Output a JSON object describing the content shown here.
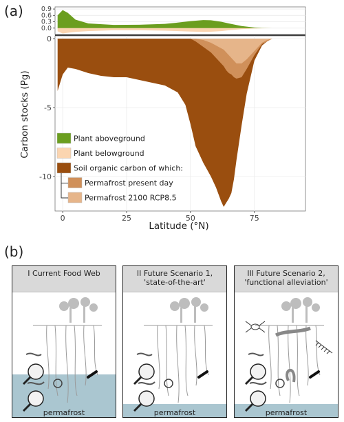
{
  "panel_a": {
    "letter": "(a)",
    "ylabel": "Carbon stocks (Pg)",
    "xlabel": "Latitude (°N)"
  },
  "panel_b": {
    "letter": "(b)",
    "scenarios": [
      {
        "title": "I Current Food Web",
        "permafrost_label": "permafrost"
      },
      {
        "title": "II Future Scenario 1,\n'state-of-the-art'",
        "permafrost_label": "permafrost"
      },
      {
        "title": "III Future Scenario 2,\n'functional alleviation'",
        "permafrost_label": "permafrost"
      }
    ]
  },
  "colors": {
    "plant_aboveground": "#6b9e1f",
    "plant_belowground": "#fbd5b0",
    "soil_organic_carbon": "#9a4e0f",
    "permafrost_present": "#d0905a",
    "permafrost_2100": "#e6b58a",
    "permafrost_band": "#aac6d0"
  },
  "chart_data": [
    {
      "type": "area",
      "panel": "top",
      "x": [
        -2,
        0,
        2,
        5,
        10,
        20,
        30,
        40,
        45,
        50,
        55,
        58,
        62,
        65,
        70,
        75,
        78,
        82
      ],
      "series": [
        {
          "name": "Plant aboveground",
          "values": [
            0.6,
            0.85,
            0.72,
            0.4,
            0.22,
            0.15,
            0.16,
            0.2,
            0.26,
            0.33,
            0.38,
            0.37,
            0.3,
            0.22,
            0.1,
            0.03,
            0.01,
            0.0
          ]
        },
        {
          "name": "Plant belowground",
          "values": [
            0.15,
            0.25,
            0.22,
            0.18,
            0.14,
            0.1,
            0.1,
            0.12,
            0.14,
            0.16,
            0.18,
            0.17,
            0.14,
            0.1,
            0.05,
            0.02,
            0.01,
            0.0
          ]
        }
      ],
      "yticks": [
        0.0,
        0.3,
        0.6,
        0.9
      ],
      "ylim": [
        -0.3,
        1.0
      ]
    },
    {
      "type": "area",
      "panel": "bottom",
      "x": [
        -2,
        0,
        2,
        5,
        10,
        15,
        20,
        25,
        30,
        35,
        40,
        45,
        48,
        50,
        52,
        55,
        58,
        60,
        62,
        63,
        64,
        65,
        66,
        67,
        68,
        70,
        72,
        75,
        78,
        80,
        82
      ],
      "series": [
        {
          "name": "Soil organic carbon of which:",
          "values": [
            -3.8,
            -2.6,
            -2.1,
            -2.2,
            -2.5,
            -2.7,
            -2.8,
            -2.8,
            -3.0,
            -3.2,
            -3.4,
            -3.9,
            -4.8,
            -6.2,
            -7.8,
            -9.0,
            -10.0,
            -10.8,
            -11.8,
            -12.2,
            -11.9,
            -11.6,
            -11.2,
            -10.2,
            -8.8,
            -6.3,
            -4.0,
            -1.6,
            -0.5,
            -0.2,
            0.0
          ]
        },
        {
          "name": "Permafrost present day",
          "values": [
            0,
            0,
            0,
            0,
            0,
            0,
            0,
            0,
            0,
            0,
            0,
            0,
            0,
            0,
            -0.2,
            -0.6,
            -1.0,
            -1.4,
            -1.8,
            -2.0,
            -2.3,
            -2.5,
            -2.6,
            -2.8,
            -2.9,
            -2.8,
            -2.2,
            -1.2,
            -0.4,
            -0.2,
            0.0
          ]
        },
        {
          "name": "Permafrost 2100 RCP8.5",
          "values": [
            0,
            0,
            0,
            0,
            0,
            0,
            0,
            0,
            0,
            0,
            0,
            0,
            0,
            0,
            0,
            -0.1,
            -0.3,
            -0.5,
            -0.7,
            -0.8,
            -1.0,
            -1.2,
            -1.4,
            -1.6,
            -1.8,
            -1.8,
            -1.5,
            -0.9,
            -0.3,
            -0.1,
            0.0
          ]
        }
      ],
      "xticks": [
        0,
        25,
        50,
        75
      ],
      "yticks": [
        0,
        -5,
        -10
      ],
      "xlim": [
        -3,
        95
      ],
      "ylim": [
        -12.5,
        0.2
      ]
    }
  ],
  "legend": [
    {
      "label": "Plant aboveground",
      "color_key": "plant_aboveground",
      "indent": 0
    },
    {
      "label": "Plant belowground",
      "color_key": "plant_belowground",
      "indent": 0
    },
    {
      "label": "Soil organic carbon of which:",
      "color_key": "soil_organic_carbon",
      "indent": 0
    },
    {
      "label": "Permafrost present day",
      "color_key": "permafrost_present",
      "indent": 1
    },
    {
      "label": "Permafrost 2100 RCP8.5",
      "color_key": "permafrost_2100",
      "indent": 1
    }
  ]
}
